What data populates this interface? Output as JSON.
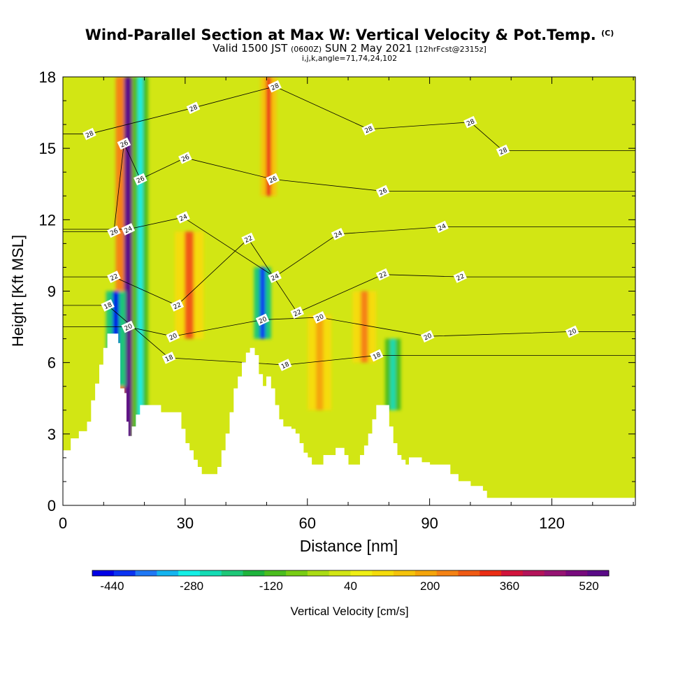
{
  "title": {
    "main": "Wind-Parallel Section at Max W: Vertical Velocity & Pot.Temp.",
    "copyright": "(C)",
    "valid_prefix": "Valid 1500 JST",
    "zulu": "(0600Z)",
    "valid_date": "SUN 2 May 2021",
    "forecast": "[12hrFcst@2315z]",
    "indices": "i,j,k,angle=71,74,24,102"
  },
  "chart_data": {
    "type": "heatmap",
    "xlabel": "Distance [nm]",
    "ylabel": "Height [Kft MSL]",
    "xlim": [
      0,
      140.5
    ],
    "ylim": [
      0,
      18
    ],
    "x_ticks": [
      0,
      30,
      60,
      90,
      120
    ],
    "y_ticks": [
      0,
      3,
      6,
      9,
      12,
      15,
      18
    ],
    "colorbar": {
      "label": "Vertical Velocity [cm/s]",
      "range": [
        -480,
        560
      ],
      "tick_values": [
        -440,
        -280,
        -120,
        40,
        200,
        360,
        520
      ],
      "colors": [
        "#0000e6",
        "#0a33f2",
        "#1f78f5",
        "#14b4f0",
        "#14f0e6",
        "#14dcb4",
        "#1ec878",
        "#1eb43c",
        "#4bbe1e",
        "#78cd14",
        "#aadc14",
        "#d2e614",
        "#f0f014",
        "#f5dc0a",
        "#f5c30a",
        "#f5a50a",
        "#f58214",
        "#f05a14",
        "#eb2d14",
        "#d2143c",
        "#b4145a",
        "#961473",
        "#780a7d",
        "#5a0a87"
      ],
      "colors_note": "24 discrete bins of 40 cm/s, from -480 to 560"
    },
    "terrain": [
      [
        0,
        2.3
      ],
      [
        2,
        2.8
      ],
      [
        4,
        3.1
      ],
      [
        6,
        3.5
      ],
      [
        7,
        4.4
      ],
      [
        8,
        5.1
      ],
      [
        9,
        5.9
      ],
      [
        10,
        6.6
      ],
      [
        11,
        7.2
      ],
      [
        13,
        7.2
      ],
      [
        13.5,
        6.8
      ],
      [
        14,
        4.9
      ],
      [
        15,
        4.7
      ],
      [
        15.5,
        3.5
      ],
      [
        16,
        2.9
      ],
      [
        17,
        3.3
      ],
      [
        18,
        3.8
      ],
      [
        19,
        4.2
      ],
      [
        23,
        4.2
      ],
      [
        24,
        3.9
      ],
      [
        28,
        3.9
      ],
      [
        29,
        3.2
      ],
      [
        30,
        2.6
      ],
      [
        31,
        2.3
      ],
      [
        32,
        1.9
      ],
      [
        33,
        1.6
      ],
      [
        34,
        1.3
      ],
      [
        37,
        1.3
      ],
      [
        38,
        1.6
      ],
      [
        39,
        2.3
      ],
      [
        40,
        3.0
      ],
      [
        41,
        3.9
      ],
      [
        42,
        4.9
      ],
      [
        43,
        5.4
      ],
      [
        44,
        6.0
      ],
      [
        45,
        6.4
      ],
      [
        46,
        6.6
      ],
      [
        47,
        6.3
      ],
      [
        48,
        5.5
      ],
      [
        49,
        5.0
      ],
      [
        50,
        5.4
      ],
      [
        51,
        4.9
      ],
      [
        52,
        4.2
      ],
      [
        53,
        3.6
      ],
      [
        54,
        3.3
      ],
      [
        56,
        3.2
      ],
      [
        57,
        3.0
      ],
      [
        58,
        2.6
      ],
      [
        59,
        2.2
      ],
      [
        60,
        2.0
      ],
      [
        61,
        1.7
      ],
      [
        63,
        1.7
      ],
      [
        64,
        2.1
      ],
      [
        66,
        2.1
      ],
      [
        67,
        2.4
      ],
      [
        69,
        2.1
      ],
      [
        70,
        1.7
      ],
      [
        72,
        1.7
      ],
      [
        73,
        2.1
      ],
      [
        74,
        2.5
      ],
      [
        75,
        3.0
      ],
      [
        76,
        3.6
      ],
      [
        77,
        4.2
      ],
      [
        79,
        4.2
      ],
      [
        80,
        3.3
      ],
      [
        81,
        2.6
      ],
      [
        82,
        2.1
      ],
      [
        83,
        1.9
      ],
      [
        84,
        1.7
      ],
      [
        85,
        2.0
      ],
      [
        87,
        2.0
      ],
      [
        88,
        1.8
      ],
      [
        90,
        1.7
      ],
      [
        93,
        1.7
      ],
      [
        95,
        1.3
      ],
      [
        97,
        1.0
      ],
      [
        100,
        0.8
      ],
      [
        103,
        0.6
      ],
      [
        104,
        0.3
      ],
      [
        140.5,
        0.3
      ]
    ],
    "updrafts": [
      {
        "x": 16,
        "width": 1.9,
        "value": 560,
        "band": "full height"
      },
      {
        "x": 31,
        "width": 2.2,
        "value": 260,
        "band": "7-11.5 kft"
      },
      {
        "x": 50.5,
        "width": 1.2,
        "value": 300,
        "band": "13-18 kft"
      },
      {
        "x": 63,
        "width": 1.8,
        "value": 200,
        "band": "4-8 kft"
      },
      {
        "x": 74,
        "width": 1.8,
        "value": 230,
        "band": "6-9 kft"
      }
    ],
    "downdrafts": [
      {
        "x": 13,
        "width": 1.5,
        "value": -440,
        "band": "5-9 kft"
      },
      {
        "x": 19,
        "width": 1.2,
        "value": -280,
        "band": "full height"
      },
      {
        "x": 49,
        "width": 1.3,
        "value": -400,
        "band": "7-10 kft"
      },
      {
        "x": 81,
        "width": 1.2,
        "value": -250,
        "band": "4-7 kft"
      }
    ],
    "theta_contour_labels": [
      {
        "value": 28,
        "x": 6.5,
        "y": 15.6
      },
      {
        "value": 28,
        "x": 32,
        "y": 16.7
      },
      {
        "value": 28,
        "x": 52,
        "y": 17.6
      },
      {
        "value": 28,
        "x": 75,
        "y": 15.8
      },
      {
        "value": 28,
        "x": 100,
        "y": 16.1
      },
      {
        "value": 28,
        "x": 108,
        "y": 14.9
      },
      {
        "value": 26,
        "x": 15,
        "y": 15.2
      },
      {
        "value": 26,
        "x": 30,
        "y": 14.6
      },
      {
        "value": 26,
        "x": 19,
        "y": 13.7
      },
      {
        "value": 26,
        "x": 51.5,
        "y": 13.7
      },
      {
        "value": 26,
        "x": 78.5,
        "y": 13.2
      },
      {
        "value": 26,
        "x": 12.5,
        "y": 11.5
      },
      {
        "value": 24,
        "x": 16,
        "y": 11.6
      },
      {
        "value": 24,
        "x": 29.5,
        "y": 12.1
      },
      {
        "value": 24,
        "x": 67.5,
        "y": 11.4
      },
      {
        "value": 24,
        "x": 93,
        "y": 11.7
      },
      {
        "value": 24,
        "x": 52,
        "y": 9.6
      },
      {
        "value": 22,
        "x": 12.5,
        "y": 9.6
      },
      {
        "value": 22,
        "x": 45.5,
        "y": 11.2
      },
      {
        "value": 22,
        "x": 28,
        "y": 8.4
      },
      {
        "value": 22,
        "x": 57.5,
        "y": 8.1
      },
      {
        "value": 22,
        "x": 78.5,
        "y": 9.7
      },
      {
        "value": 22,
        "x": 97.5,
        "y": 9.6
      },
      {
        "value": 20,
        "x": 16,
        "y": 7.5
      },
      {
        "value": 20,
        "x": 27,
        "y": 7.1
      },
      {
        "value": 20,
        "x": 49,
        "y": 7.8
      },
      {
        "value": 20,
        "x": 63,
        "y": 7.9
      },
      {
        "value": 20,
        "x": 89.5,
        "y": 7.1
      },
      {
        "value": 20,
        "x": 125,
        "y": 7.3
      },
      {
        "value": 18,
        "x": 11,
        "y": 8.4
      },
      {
        "value": 18,
        "x": 26,
        "y": 6.2
      },
      {
        "value": 18,
        "x": 54.5,
        "y": 5.9
      },
      {
        "value": 18,
        "x": 77,
        "y": 6.3
      }
    ]
  }
}
